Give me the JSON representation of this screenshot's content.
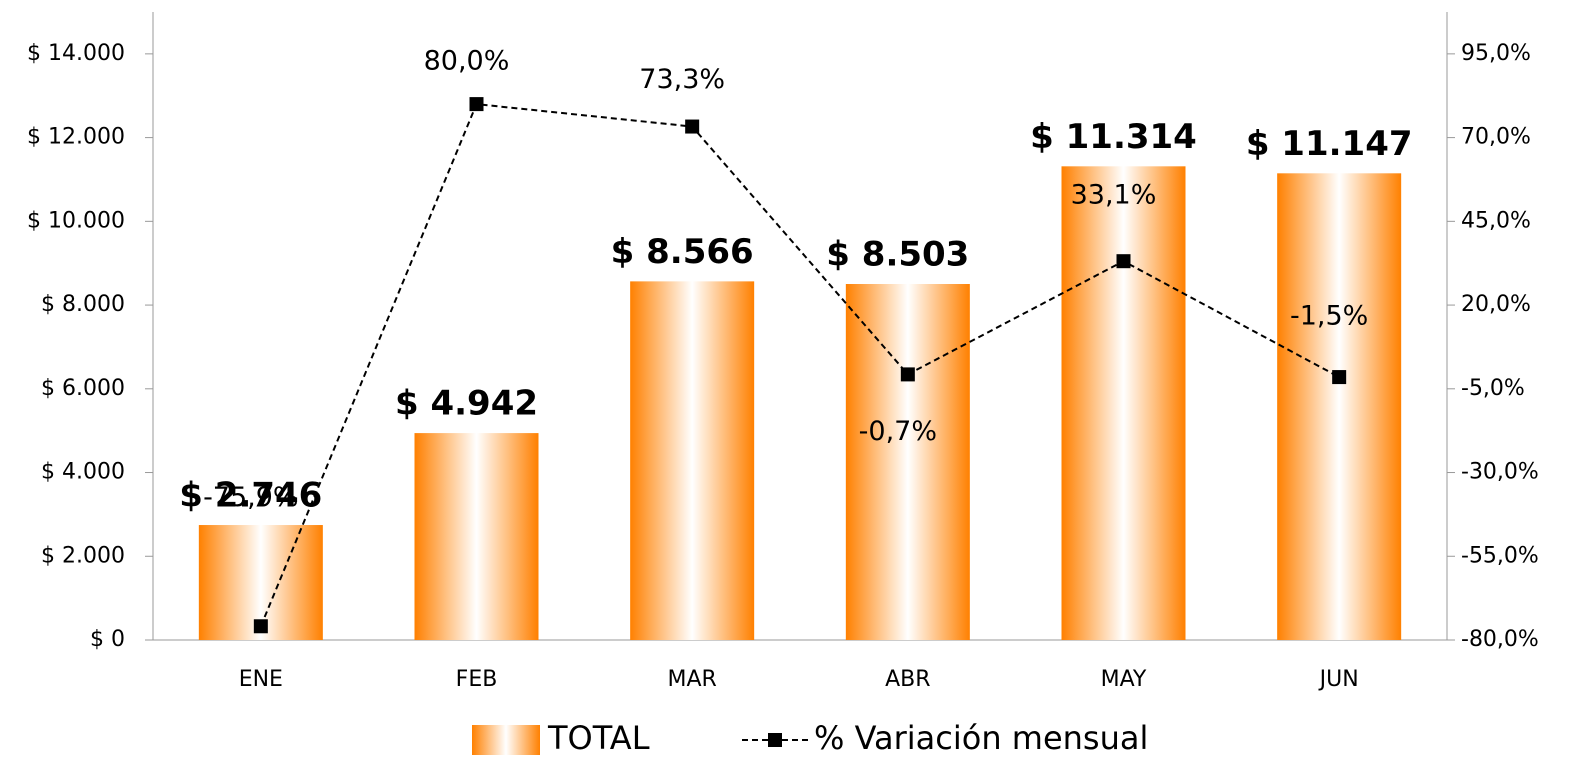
{
  "chart_data": {
    "type": "bar_line",
    "categories": [
      "ENE",
      "FEB",
      "MAR",
      "ABR",
      "MAY",
      "JUN"
    ],
    "series": [
      {
        "name": "TOTAL",
        "type": "bar",
        "color": "#ff8000",
        "values": [
          2746,
          4942,
          8566,
          8503,
          11314,
          11147
        ],
        "value_labels": [
          "$ 2.746",
          "$ 4.942",
          "$ 8.566",
          "$ 8.503",
          "$ 11.314",
          "$ 11.147"
        ]
      },
      {
        "name": "% Variación mensual",
        "type": "line",
        "axis": "y2",
        "color": "#000000",
        "values": [
          -75.9,
          80.0,
          73.3,
          -0.7,
          33.1,
          -1.5
        ],
        "value_labels": [
          "-75,9%",
          "80,0%",
          "73,3%",
          "-0,7%",
          "33,1%",
          "-1,5%"
        ]
      }
    ],
    "ylim": [
      0,
      15000
    ],
    "yticks": [
      {
        "value": 0,
        "label": "$ 0"
      },
      {
        "value": 2000,
        "label": "$ 2.000"
      },
      {
        "value": 4000,
        "label": "$ 4.000"
      },
      {
        "value": 6000,
        "label": "$ 6.000"
      },
      {
        "value": 8000,
        "label": "$ 8.000"
      },
      {
        "value": 10000,
        "label": "$ 10.000"
      },
      {
        "value": 12000,
        "label": "$ 12.000"
      },
      {
        "value": 14000,
        "label": "$ 14.000"
      }
    ],
    "y2lim": [
      -80,
      107.5
    ],
    "y2ticks": [
      {
        "value": -80,
        "label": "-80,0%"
      },
      {
        "value": -55,
        "label": "-55,0%"
      },
      {
        "value": -30,
        "label": "-30,0%"
      },
      {
        "value": -5,
        "label": "-5,0%"
      },
      {
        "value": 20,
        "label": "20,0%"
      },
      {
        "value": 45,
        "label": "45,0%"
      },
      {
        "value": 70,
        "label": "70,0%"
      },
      {
        "value": 95,
        "label": "95,0%"
      }
    ],
    "legend": "bottom"
  }
}
